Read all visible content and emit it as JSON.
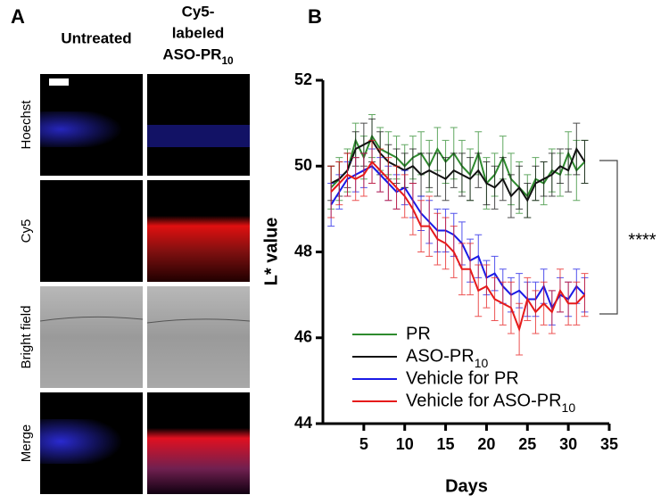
{
  "panel_a": {
    "label": "A",
    "columns": [
      "Untreated",
      [
        "Cy5-",
        "labeled",
        "ASO-PR10"
      ]
    ],
    "rows": [
      "Hoechst",
      "Cy5",
      "Bright field",
      "Merge"
    ]
  },
  "chart_data": {
    "type": "line",
    "panel_label": "B",
    "x_label": "Days",
    "y_label": "L* value",
    "annotation": "****",
    "x": [
      1,
      2,
      3,
      4,
      5,
      6,
      7,
      8,
      9,
      10,
      11,
      12,
      13,
      14,
      15,
      16,
      17,
      18,
      19,
      20,
      21,
      22,
      23,
      24,
      25,
      26,
      27,
      28,
      29,
      30,
      31,
      32
    ],
    "xlim": [
      0,
      35
    ],
    "xticks": [
      5,
      10,
      15,
      20,
      25,
      30,
      35
    ],
    "ylim": [
      44,
      52
    ],
    "yticks": [
      44,
      46,
      48,
      50,
      52
    ],
    "legend": "lower left",
    "series": [
      {
        "name": "PR",
        "color": "#2e8b2e",
        "values": [
          49.5,
          49.7,
          49.9,
          50.6,
          50.2,
          50.7,
          50.4,
          50.3,
          50.2,
          50.0,
          50.2,
          50.3,
          50.0,
          50.4,
          50.1,
          50.3,
          50.0,
          49.8,
          50.3,
          49.6,
          49.8,
          50.2,
          49.7,
          49.5,
          49.3,
          49.7,
          49.6,
          49.9,
          49.8,
          50.3,
          49.9,
          50.1
        ],
        "errors": [
          0.5,
          0.5,
          0.5,
          0.4,
          0.5,
          0.5,
          0.5,
          0.5,
          0.5,
          0.5,
          0.5,
          0.5,
          0.6,
          0.5,
          0.5,
          0.6,
          0.6,
          0.6,
          0.5,
          0.6,
          0.5,
          0.5,
          0.6,
          0.6,
          0.5,
          0.5,
          0.5,
          0.5,
          0.5,
          0.5,
          0.7,
          0.5
        ]
      },
      {
        "name": "ASO-PR10",
        "color": "#111111",
        "values": [
          49.6,
          49.7,
          49.9,
          50.4,
          50.5,
          50.6,
          50.3,
          50.1,
          50.0,
          49.9,
          50.0,
          49.8,
          49.9,
          49.8,
          49.7,
          49.9,
          49.8,
          49.7,
          49.9,
          49.6,
          49.5,
          49.7,
          49.3,
          49.5,
          49.2,
          49.6,
          49.7,
          49.8,
          50.0,
          49.9,
          50.4,
          50.1
        ],
        "errors": [
          0.4,
          0.4,
          0.4,
          0.4,
          0.5,
          0.5,
          0.5,
          0.4,
          0.4,
          0.4,
          0.4,
          0.5,
          0.4,
          0.5,
          0.5,
          0.4,
          0.5,
          0.5,
          0.4,
          0.5,
          0.5,
          0.5,
          0.5,
          0.5,
          0.4,
          0.4,
          0.4,
          0.5,
          0.4,
          0.5,
          0.6,
          0.5
        ]
      },
      {
        "name": "Vehicle for PR",
        "color": "#1a1ae6",
        "values": [
          49.1,
          49.4,
          49.7,
          49.8,
          49.9,
          50.0,
          49.8,
          49.6,
          49.4,
          49.5,
          49.2,
          48.9,
          48.7,
          48.5,
          48.5,
          48.4,
          48.2,
          47.8,
          47.9,
          47.4,
          47.5,
          47.2,
          47.0,
          47.1,
          46.9,
          46.9,
          47.2,
          46.7,
          47.0,
          46.9,
          47.2,
          47.0
        ],
        "errors": [
          0.5,
          0.4,
          0.4,
          0.4,
          0.4,
          0.4,
          0.4,
          0.4,
          0.4,
          0.4,
          0.4,
          0.4,
          0.5,
          0.5,
          0.5,
          0.5,
          0.5,
          0.5,
          0.5,
          0.4,
          0.4,
          0.4,
          0.4,
          0.4,
          0.4,
          0.4,
          0.4,
          0.4,
          0.4,
          0.4,
          0.4,
          0.4
        ]
      },
      {
        "name": "Vehicle for ASO-PR10",
        "color": "#e61a1a",
        "values": [
          49.4,
          49.6,
          49.8,
          49.7,
          49.8,
          50.1,
          49.9,
          49.7,
          49.5,
          49.3,
          49.0,
          48.6,
          48.6,
          48.3,
          48.2,
          48.0,
          47.6,
          47.6,
          47.1,
          47.2,
          46.9,
          46.8,
          46.7,
          46.2,
          46.9,
          46.6,
          46.8,
          46.6,
          47.1,
          46.8,
          46.8,
          47.0
        ],
        "errors": [
          0.6,
          0.5,
          0.5,
          0.5,
          0.5,
          0.5,
          0.5,
          0.5,
          0.5,
          0.5,
          0.6,
          0.6,
          0.7,
          0.6,
          0.6,
          0.6,
          0.6,
          0.6,
          0.6,
          0.5,
          0.5,
          0.5,
          0.6,
          0.6,
          0.5,
          0.5,
          0.5,
          0.5,
          0.5,
          0.5,
          0.5,
          0.5
        ]
      }
    ]
  }
}
